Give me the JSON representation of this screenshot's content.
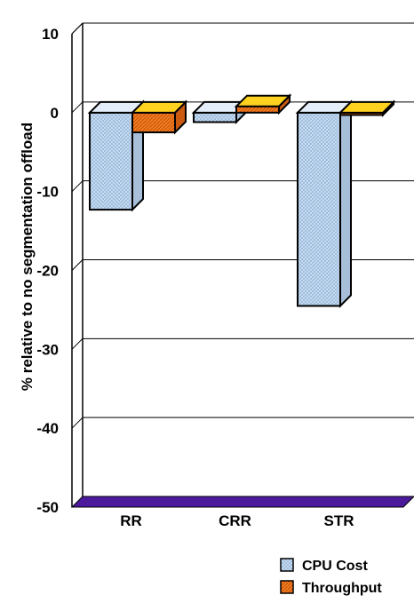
{
  "chart_data": {
    "type": "bar",
    "ylabel": "% relative to no segmentation offload",
    "categories": [
      "RR",
      "CRR",
      "STR"
    ],
    "series": [
      {
        "name": "CPU Cost",
        "values": [
          -12.3,
          -1.2,
          -24.5
        ]
      },
      {
        "name": "Throughput",
        "values": [
          -2.5,
          0.8,
          -0.3
        ]
      }
    ],
    "ylim": [
      -50,
      10
    ],
    "yticks": [
      10,
      0,
      -10,
      -20,
      -30,
      -40,
      -50
    ],
    "grid": true,
    "style": "3d",
    "legend_position": "bottom-right",
    "colors": {
      "cpu_front": "#cfe0f2",
      "cpu_side": "#a7bfd9",
      "cpu_top": "#e3eefa",
      "tp_front": "#f47a1f",
      "tp_side": "#c95a10",
      "tp_top": "#ffd21f",
      "floor": "#4b1a9c",
      "outline": "#000000"
    }
  }
}
